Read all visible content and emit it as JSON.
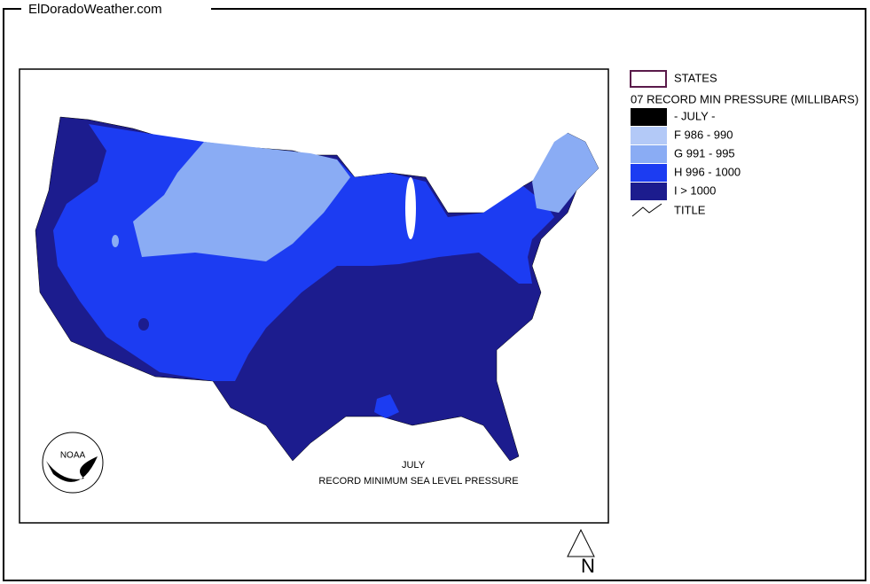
{
  "header": {
    "site": "ElDoradoWeather.com"
  },
  "legend": {
    "states": "STATES",
    "title": "07 RECORD MIN PRESSURE (MILLIBARS)",
    "items": [
      {
        "label": "- JULY -",
        "color": "#000000"
      },
      {
        "label": "F 986 - 990",
        "color": "#b3c9f7"
      },
      {
        "label": "G 991 - 995",
        "color": "#8aacf4"
      },
      {
        "label": "H 996 - 1000",
        "color": "#1c3cf2"
      },
      {
        "label": "I > 1000",
        "color": "#1c1c8e"
      }
    ],
    "line": "TITLE"
  },
  "map": {
    "title": "JULY",
    "subtitle": "RECORD  MINIMUM SEA LEVEL PRESSURE",
    "logo": "NOAA",
    "north": "N"
  }
}
